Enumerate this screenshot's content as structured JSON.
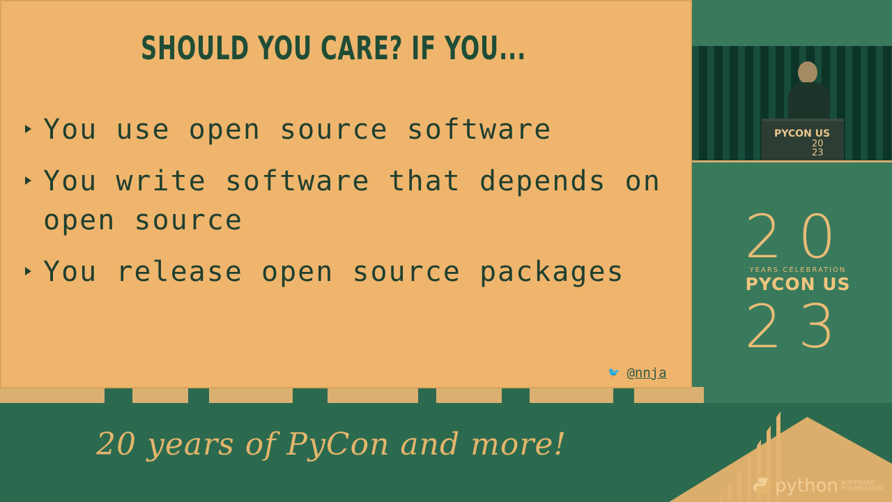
{
  "slide": {
    "title": "SHOULD YOU CARE? IF YOU...",
    "bullets": [
      "You use open source software",
      "You write software that depends on open source",
      "You release open source packages"
    ],
    "handle": "@nnja"
  },
  "video": {
    "podium_brand": "PYCON US",
    "podium_year_top": "20",
    "podium_year_bottom": "23"
  },
  "brand": {
    "year_top": "20",
    "subtitle": "YEARS CELEBRATION",
    "name": "PYCON US",
    "year_bottom": "23"
  },
  "footer": {
    "tagline": "20 years of PyCon and more!",
    "logo_word": "python",
    "logo_sub": "SOFTWARE FOUNDATION"
  },
  "colors": {
    "slide_bg": "#efb56d",
    "title": "#1f4d36",
    "body_text": "#1f3f2f",
    "background": "#2f6a52",
    "accent": "#e4b56c"
  },
  "icons": {
    "bullet": "triangle-right-icon",
    "twitter": "twitter-bird-icon",
    "python": "python-logo-icon"
  }
}
